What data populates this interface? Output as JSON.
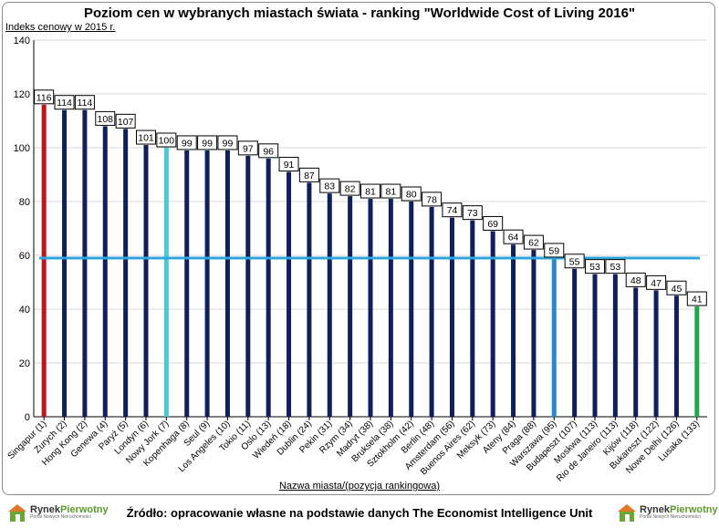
{
  "chart_data": {
    "type": "bar",
    "title": "Poziom cen w wybranych miastach świata - ranking \"Worldwide Cost of Living 2016\"",
    "ylabel": "Indeks cenowy w 2015 r.",
    "xlabel": "Nazwa miasta/(pozycja rankingowa)",
    "ylim": [
      0,
      140
    ],
    "yticks": [
      0,
      20,
      40,
      60,
      80,
      100,
      120,
      140
    ],
    "grid": true,
    "reference_line": 59,
    "categories": [
      "Singapur (1)",
      "Zurych (2)",
      "Hong Kong (2)",
      "Genewa (4)",
      "Paryż (5)",
      "Londyn (6)",
      "Nowy Jork (7)",
      "Kopenhaga (8)",
      "Seul (9)",
      "Los Angeles (10)",
      "Tokio (11)",
      "Oslo (13)",
      "Wiedeń (18)",
      "Dublin (24)",
      "Pekin (31)",
      "Rzym (34)",
      "Madryt (38)",
      "Bruksela (38)",
      "Sztokholm (42)",
      "Berlin (48)",
      "Amsterdam (56)",
      "Buenos Aires (62)",
      "Meksyk (73)",
      "Ateny (84)",
      "Praga (88)",
      "Warszawa (95)",
      "Budapeszt (107)",
      "Moskwa (113)",
      "Rio de Janeiro (113)",
      "Kijów (118)",
      "Bukareszt (122)",
      "Nowe Delhi (126)",
      "Lusaka (133)"
    ],
    "values": [
      116,
      114,
      114,
      108,
      107,
      101,
      100,
      99,
      99,
      99,
      97,
      96,
      91,
      87,
      83,
      82,
      81,
      81,
      80,
      78,
      74,
      73,
      69,
      64,
      62,
      59,
      55,
      53,
      53,
      48,
      47,
      45,
      41
    ],
    "colors": {
      "default": "#0f1f5c",
      "Singapur (1)": "#c0141c",
      "Nowy Jork (7)": "#48c8d8",
      "Warszawa (95)": "#2e86c8",
      "Lusaka (133)": "#1ea84a",
      "reference_line": "#2ea6dc"
    }
  },
  "footer": {
    "source": "Źródło: opracowanie własne na podstawie danych The Economist Intelligence Unit",
    "logo_name_a": "Rynek",
    "logo_name_b": "Pierwotny",
    "logo_sub": "Portal Nowych Nieruchomości"
  }
}
